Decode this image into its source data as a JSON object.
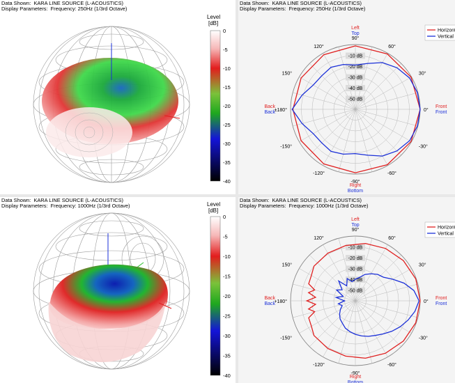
{
  "panels": [
    {
      "id": "tl",
      "kind": "balloon",
      "data_shown_label": "Data Shown:",
      "data_shown_value": "KARA LINE SOURCE (L-ACOUSTICS)",
      "params_label": "Display Parameters:",
      "params_value": "Frequency: 250Hz (1/3rd Octave)"
    },
    {
      "id": "tr",
      "kind": "polar",
      "data_shown_label": "Data Shown:",
      "data_shown_value": "KARA LINE SOURCE (L-ACOUSTICS)",
      "params_label": "Display Parameters:",
      "params_value": "Frequency: 250Hz (1/3rd Octave)"
    },
    {
      "id": "bl",
      "kind": "balloon",
      "data_shown_label": "Data Shown:",
      "data_shown_value": "KARA LINE SOURCE (L-ACOUSTICS)",
      "params_label": "Display Parameters:",
      "params_value": "Frequency: 1000Hz (1/3rd Octave)"
    },
    {
      "id": "br",
      "kind": "polar",
      "data_shown_label": "Data Shown:",
      "data_shown_value": "KARA LINE SOURCE (L-ACOUSTICS)",
      "params_label": "Display Parameters:",
      "params_value": "Frequency: 1000Hz (1/3rd Octave)"
    }
  ],
  "colors": {
    "horizontal": "#e02020",
    "vertical": "#1a2fd8",
    "back_front_label": "#e02020",
    "left_top_label": "#e02020",
    "grid": "#b8b8b8",
    "sphere_grid": "#9a9a9a"
  },
  "balloon_legend": {
    "title_line1": "Level",
    "title_line2": "[dB]",
    "ticks": [
      "0",
      "-5",
      "-10",
      "-15",
      "-20",
      "-25",
      "-30",
      "-35",
      "-40"
    ]
  },
  "chart_data": [
    {
      "type": "polar",
      "panel": "tr",
      "title": "KARA LINE SOURCE (L-ACOUSTICS)",
      "subtitle": "Frequency: 250Hz (1/3rd Octave)",
      "radial_unit": "dB",
      "radial_range": [
        -60,
        0
      ],
      "radial_ticks": [
        "-10 dB",
        "-20 dB",
        "-30 dB",
        "-40 dB",
        "-50 dB"
      ],
      "angle_ticks": [
        "0°",
        "30°",
        "60°",
        "90°",
        "120°",
        "150°",
        "±180°",
        "-150°",
        "-120°",
        "-90°",
        "-60°",
        "-30°"
      ],
      "direction_labels": {
        "top": [
          "Left",
          "Top"
        ],
        "bottom": [
          "Right",
          "Bottom"
        ],
        "left": [
          "Back",
          "Back"
        ],
        "right": [
          "Front",
          "Front"
        ]
      },
      "legend": {
        "placement": "top-right",
        "entries": [
          "Horizontal",
          "Vertical"
        ]
      },
      "series": [
        {
          "name": "Horizontal",
          "angles_deg": [
            0,
            30,
            60,
            90,
            120,
            150,
            180,
            210,
            240,
            270,
            300,
            330,
            360
          ],
          "values_db": [
            0,
            -0.4,
            -0.8,
            -1.2,
            -1.6,
            -2,
            -2.2,
            -2,
            -1.6,
            -1.2,
            -0.8,
            -0.4,
            0
          ]
        },
        {
          "name": "Vertical",
          "angles_deg": [
            0,
            15,
            30,
            45,
            60,
            75,
            90,
            105,
            120,
            135,
            150,
            165,
            180,
            195,
            210,
            225,
            240,
            255,
            270,
            285,
            300,
            315,
            330,
            345,
            360
          ],
          "values_db": [
            0,
            -0.5,
            -2,
            -5.5,
            -10,
            -16,
            -19,
            -17,
            -15,
            -16,
            -15,
            -9,
            -1.5,
            -9,
            -15,
            -16,
            -15,
            -17,
            -19,
            -16,
            -10,
            -5.5,
            -2,
            -0.5,
            0
          ]
        }
      ]
    },
    {
      "type": "polar",
      "panel": "br",
      "title": "KARA LINE SOURCE (L-ACOUSTICS)",
      "subtitle": "Frequency: 1000Hz (1/3rd Octave)",
      "radial_unit": "dB",
      "radial_range": [
        -60,
        0
      ],
      "radial_ticks": [
        "-10 dB",
        "-20 dB",
        "-30 dB",
        "-40 dB",
        "-50 dB"
      ],
      "angle_ticks": [
        "0°",
        "30°",
        "60°",
        "90°",
        "120°",
        "150°",
        "+180°",
        "-150°",
        "-120°",
        "-90°",
        "-60°",
        "-30°"
      ],
      "direction_labels": {
        "top": [
          "Left",
          "Top"
        ],
        "bottom": [
          "Right",
          "Bottom"
        ],
        "left": [
          "Back",
          "Back"
        ],
        "right": [
          "Front",
          "Front"
        ]
      },
      "legend": {
        "placement": "top-right",
        "entries": [
          "Horizontal",
          "Vertical"
        ]
      },
      "series": [
        {
          "name": "Horizontal",
          "angles_deg": [
            0,
            20,
            40,
            60,
            80,
            100,
            120,
            140,
            150,
            160,
            165,
            170,
            175,
            180,
            185,
            190,
            195,
            200,
            210,
            220,
            240,
            260,
            280,
            300,
            320,
            340,
            360
          ],
          "values_db": [
            0,
            -0.5,
            -2,
            -4,
            -6,
            -8,
            -9,
            -10,
            -13,
            -14,
            -21,
            -16,
            -23,
            -15,
            -23,
            -16,
            -21,
            -14,
            -13,
            -10,
            -9,
            -8,
            -6,
            -4,
            -2,
            -0.5,
            0
          ]
        },
        {
          "name": "Vertical",
          "angles_deg": [
            0,
            10,
            20,
            30,
            40,
            50,
            60,
            70,
            80,
            90,
            100,
            110,
            120,
            130,
            140,
            150,
            160,
            170,
            180,
            190,
            200,
            210,
            220,
            230,
            240,
            250,
            260,
            270,
            280,
            290,
            300,
            310,
            320,
            330,
            340,
            350,
            360
          ],
          "values_db": [
            -1,
            -5,
            -12,
            -20,
            -26,
            -28,
            -31,
            -34,
            -38,
            -40,
            -42,
            -38,
            -44,
            -36,
            -44,
            -40,
            -48,
            -42,
            -50,
            -44,
            -47,
            -44,
            -41,
            -38,
            -36,
            -33,
            -31,
            -29,
            -27,
            -25,
            -23,
            -20,
            -16,
            -12,
            -8,
            -4,
            -1
          ]
        }
      ]
    }
  ]
}
